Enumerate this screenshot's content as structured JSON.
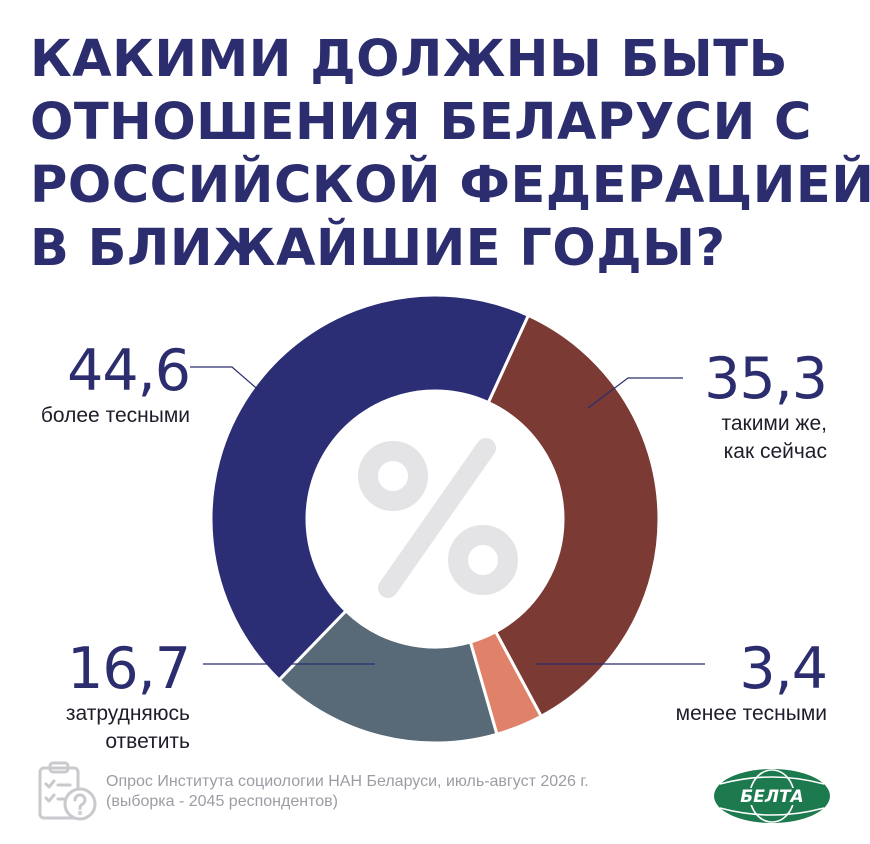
{
  "title_lines": [
    "КАКИМИ ДОЛЖНЫ БЫТЬ",
    "ОТНОШЕНИЯ БЕЛАРУСИ С",
    "РОССИЙСКОЙ ФЕДЕРАЦИЕЙ",
    "В БЛИЖАЙШИЕ ГОДЫ?"
  ],
  "chart_data": {
    "type": "pie",
    "donut": true,
    "center_symbol": "%",
    "categories": [
      "более тесными",
      "такими же, как сейчас",
      "менее тесными",
      "затрудняюсь ответить"
    ],
    "values": [
      44.6,
      35.3,
      3.4,
      16.7
    ],
    "value_labels": [
      "44,6",
      "35,3",
      "3,4",
      "16,7"
    ],
    "caption_lines": [
      [
        "более тесными"
      ],
      [
        "такими же,",
        "как сейчас"
      ],
      [
        "менее тесными"
      ],
      [
        "затрудняюсь",
        "ответить"
      ]
    ],
    "colors": [
      "#2b2d75",
      "#7b3a33",
      "#e0826a",
      "#586a78"
    ]
  },
  "footer": {
    "line1": "Опрос Института социологии НАН Беларуси, июль-август 2026 г.",
    "line2": "(выборка - 2045 респондентов)"
  },
  "logo": {
    "text": "БЕЛТА",
    "color": "#1d7a4e"
  },
  "icons": {
    "survey": "clipboard-question-icon"
  }
}
